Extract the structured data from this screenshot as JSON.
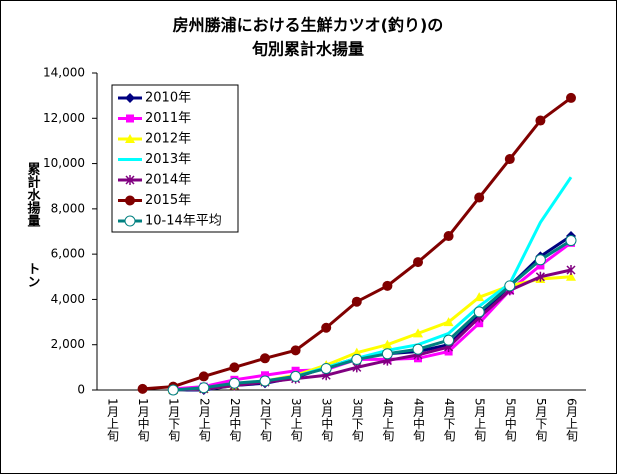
{
  "chart_data": {
    "type": "line",
    "title": [
      "房州勝浦における生鮮カツオ(釣り)の",
      "旬別累計水揚量"
    ],
    "ylabel": [
      "累計水揚量",
      "トン"
    ],
    "categories": [
      "1月上旬",
      "1月中旬",
      "1月下旬",
      "2月上旬",
      "2月中旬",
      "2月下旬",
      "3月上旬",
      "3月中旬",
      "3月下旬",
      "4月上旬",
      "4月中旬",
      "4月下旬",
      "5月上旬",
      "5月中旬",
      "5月下旬",
      "6月上旬"
    ],
    "ylim": [
      0,
      14000
    ],
    "yticks": [
      0,
      {
        "value": 2000,
        "label": "2,000"
      },
      {
        "value": 4000,
        "label": "4,000"
      },
      {
        "value": 6000,
        "label": "6,000"
      },
      {
        "value": 8000,
        "label": "8,000"
      },
      {
        "value": 10000,
        "label": "10,000"
      },
      {
        "value": 12000,
        "label": "12,000"
      },
      {
        "value": 14000,
        "label": "14,000"
      }
    ],
    "grid": false,
    "legend": "upper left",
    "series": [
      {
        "name": "2010年",
        "color": "#000080",
        "marker": "diamond",
        "values": [
          null,
          null,
          0,
          0,
          200,
          300,
          550,
          1000,
          1400,
          1600,
          1700,
          2000,
          3300,
          4600,
          5900,
          6800
        ]
      },
      {
        "name": "2011年",
        "color": "#ff00ff",
        "marker": "square",
        "values": [
          null,
          null,
          50,
          150,
          450,
          650,
          850,
          900,
          1350,
          1350,
          1400,
          1700,
          2950,
          4400,
          5500,
          6500
        ]
      },
      {
        "name": "2012年",
        "color": "#ffff00",
        "marker": "triangle",
        "values": [
          null,
          null,
          0,
          50,
          200,
          400,
          650,
          1100,
          1650,
          2000,
          2500,
          3000,
          4100,
          4600,
          4900,
          5000
        ]
      },
      {
        "name": "2013年",
        "color": "#00ffff",
        "marker": "none",
        "values": [
          null,
          null,
          0,
          50,
          250,
          400,
          600,
          1000,
          1400,
          1750,
          2000,
          2500,
          3700,
          4700,
          7400,
          9400
        ]
      },
      {
        "name": "2014年",
        "color": "#800080",
        "marker": "star",
        "values": [
          null,
          null,
          0,
          50,
          200,
          350,
          500,
          650,
          1000,
          1300,
          1550,
          1900,
          3200,
          4400,
          5000,
          5300
        ]
      },
      {
        "name": "2015年",
        "color": "#800000",
        "marker": "circle",
        "values": [
          null,
          50,
          150,
          600,
          1000,
          1400,
          1750,
          2750,
          3900,
          4600,
          5650,
          6800,
          8500,
          10200,
          11900,
          12900
        ]
      },
      {
        "name": "10-14年平均",
        "color": "#008080",
        "marker": "open-circle",
        "values": [
          null,
          null,
          0,
          100,
          300,
          400,
          600,
          950,
          1350,
          1600,
          1800,
          2200,
          3450,
          4600,
          5750,
          6600
        ]
      }
    ]
  }
}
